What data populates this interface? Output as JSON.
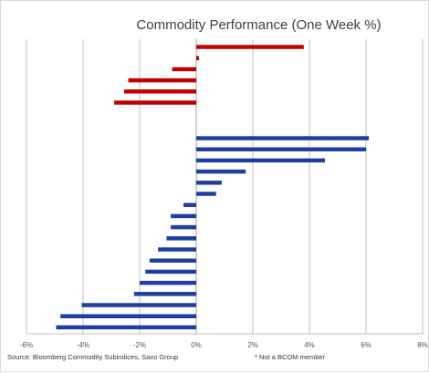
{
  "chart_data": {
    "type": "bar",
    "orientation": "horizontal",
    "title": "Commodity Performance (One Week %)",
    "xlabel": "",
    "ylabel": "",
    "xlim": [
      -6,
      8
    ],
    "xticks": [
      -6,
      -4,
      -2,
      0,
      2,
      4,
      6,
      8
    ],
    "tick_labels": [
      "-6%",
      "-4%",
      "-2%",
      "0%",
      "2%",
      "4%",
      "6%",
      "8%"
    ],
    "grid": "vertical",
    "category_labels_shown": false,
    "series": [
      {
        "color": "#c00000",
        "values": [
          3.8,
          0.1,
          -0.85,
          -2.4,
          -2.55,
          -2.9
        ]
      },
      {
        "color": "#1f3fa0",
        "values": [
          6.1,
          6.0,
          4.55,
          1.75,
          0.9,
          0.7,
          -0.45,
          -0.9,
          -0.9,
          -1.05,
          -1.35,
          -1.65,
          -1.8,
          -2.0,
          -2.2,
          -4.05,
          -4.8,
          -4.95
        ]
      }
    ]
  },
  "footer": {
    "source": "Source: Bloomberg Commodity Subindices, Saxo Group",
    "note": "* Not a BCOM member"
  }
}
